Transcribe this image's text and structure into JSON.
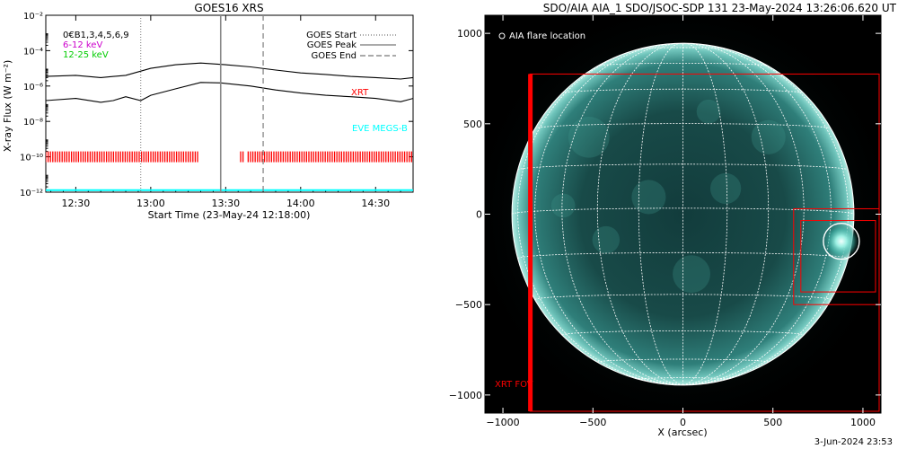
{
  "chart_data": [
    {
      "type": "line",
      "title": "GOES16 XRS",
      "xlabel": "Start Time (23-May-24 12:18:00)",
      "ylabel": "X-ray Flux (W m⁻²)",
      "log_y": true,
      "ylim": [
        1e-12,
        0.01
      ],
      "ytick_labels": [
        "10⁻¹²",
        "10⁻¹⁰",
        "10⁻⁸",
        "10⁻⁶",
        "10⁻⁴",
        "10⁻²"
      ],
      "xtick_labels": [
        "12:30",
        "13:00",
        "13:30",
        "14:00",
        "14:30"
      ],
      "channel_labels": [
        {
          "text": "6-12 keV",
          "color": "#cc00cc"
        },
        {
          "text": "12-25 keV",
          "color": "#00cc00"
        }
      ],
      "overlap_label": "0€B1,3,4,5,6,9",
      "legend": [
        {
          "name": "GOES Start",
          "style": "dotted"
        },
        {
          "name": "GOES Peak",
          "style": "solid"
        },
        {
          "name": "GOES End",
          "style": "dashed"
        }
      ],
      "events": {
        "start": "12:56",
        "peak": "13:28",
        "end": "13:45"
      },
      "series": [
        {
          "name": "GOES long",
          "color": "#000000",
          "x": [
            "12:18",
            "12:30",
            "12:40",
            "12:50",
            "13:00",
            "13:10",
            "13:20",
            "13:30",
            "13:40",
            "13:50",
            "14:00",
            "14:10",
            "14:20",
            "14:30",
            "14:40",
            "14:45"
          ],
          "y": [
            3.5e-06,
            4e-06,
            3e-06,
            4e-06,
            1e-05,
            1.6e-05,
            2e-05,
            1.6e-05,
            1.2e-05,
            8e-06,
            5.5e-06,
            4.5e-06,
            3.5e-06,
            3e-06,
            2.5e-06,
            3e-06
          ]
        },
        {
          "name": "GOES short",
          "color": "#000000",
          "x": [
            "12:18",
            "12:30",
            "12:40",
            "12:45",
            "12:50",
            "12:56",
            "13:00",
            "13:10",
            "13:20",
            "13:28",
            "13:40",
            "13:50",
            "14:00",
            "14:10",
            "14:20",
            "14:30",
            "14:40",
            "14:45"
          ],
          "y": [
            1.5e-07,
            2e-07,
            1.2e-07,
            1.5e-07,
            2.5e-07,
            1.5e-07,
            3e-07,
            7e-07,
            1.6e-06,
            1.5e-06,
            1e-06,
            6e-07,
            4e-07,
            3e-07,
            2.5e-07,
            2e-07,
            1.3e-07,
            2e-07
          ]
        }
      ],
      "annotations": [
        {
          "text": "XRT",
          "color": "#ff0000"
        },
        {
          "text": "EVE MEGS-B",
          "color": "#00ffff"
        }
      ],
      "xrt_coverage": {
        "color": "#ff0000",
        "value": 1e-10,
        "intervals": [
          [
            "12:18",
            "13:19"
          ],
          [
            "13:36",
            "13:37"
          ],
          [
            "13:39",
            "14:45"
          ]
        ]
      },
      "eve_level": {
        "color": "#00ffff",
        "value": 1.3e-12
      }
    },
    {
      "type": "image",
      "title": "SDO/AIA AIA_1 SDO/JSOC-SDP 131 23-May-2024 13:26:06.620 UT",
      "xlabel": "X (arcsec)",
      "ylabel": "",
      "xlim": [
        -1100,
        1100
      ],
      "ylim": [
        -1100,
        1100
      ],
      "xtick_labels": [
        "−1000",
        "−500",
        "0",
        "500",
        "1000"
      ],
      "ytick_labels": [
        "1000",
        "500",
        "0",
        "−500",
        "−1000"
      ],
      "legend_label": "AIA flare location",
      "fov_label": "XRT FOV",
      "solar_radius_arcsec": 950,
      "grid": true,
      "flare_location": [
        880,
        -150
      ],
      "fov_boxes": [
        {
          "x0": -850,
          "x1": 1090,
          "y0": -1090,
          "y1": 775,
          "color": "#ff0000"
        },
        {
          "x0": 615,
          "x1": 1090,
          "y0": -500,
          "y1": 30,
          "color": "#ff0000"
        },
        {
          "x0": 655,
          "x1": 1070,
          "y0": -430,
          "y1": -35,
          "color": "#ff0000"
        }
      ]
    }
  ],
  "footer": {
    "date_stamp": "3-Jun-2024 23:53"
  }
}
